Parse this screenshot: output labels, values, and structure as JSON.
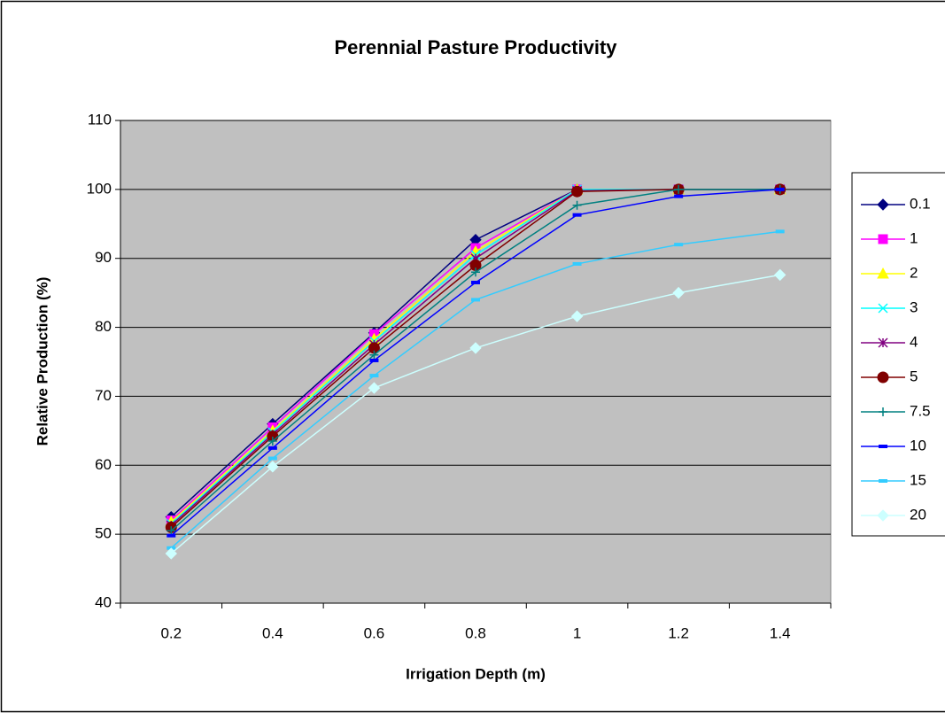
{
  "chart_data": {
    "type": "line",
    "title": "Perennial Pasture Productivity",
    "x_label": "Irrigation Depth (m)",
    "y_label": "Relative Production (%)",
    "categories": [
      "0.2",
      "0.4",
      "0.6",
      "0.8",
      "1",
      "1.2",
      "1.4"
    ],
    "ylim": [
      40,
      110
    ],
    "yticks": [
      40,
      50,
      60,
      70,
      80,
      90,
      100,
      110
    ],
    "grid": true,
    "legend": "right",
    "plot_background": "#c0c0c0",
    "series": [
      {
        "name": "0.1",
        "color": "#000080",
        "marker": "diamond",
        "values": [
          52.5,
          66,
          79.2,
          92.7,
          100,
          100,
          100
        ]
      },
      {
        "name": "1",
        "color": "#ff00ff",
        "marker": "square",
        "values": [
          52,
          65.5,
          79,
          91.5,
          100,
          100,
          100
        ]
      },
      {
        "name": "2",
        "color": "#ffff00",
        "marker": "triangle",
        "values": [
          51.8,
          65,
          78.3,
          91,
          100,
          100,
          100
        ]
      },
      {
        "name": "3",
        "color": "#00ffff",
        "marker": "x",
        "values": [
          51.5,
          64.8,
          78,
          90.5,
          100,
          100,
          100
        ]
      },
      {
        "name": "4",
        "color": "#800080",
        "marker": "star",
        "values": [
          51.3,
          64.5,
          77.5,
          90,
          99.8,
          100,
          100
        ]
      },
      {
        "name": "5",
        "color": "#800000",
        "marker": "circle",
        "values": [
          51,
          64.2,
          77,
          89,
          99.7,
          100,
          100
        ]
      },
      {
        "name": "7.5",
        "color": "#008080",
        "marker": "plus",
        "values": [
          50.5,
          63.5,
          76,
          88,
          97.7,
          100,
          100
        ]
      },
      {
        "name": "10",
        "color": "#0000ff",
        "marker": "dash",
        "values": [
          49.8,
          62.5,
          75.2,
          86.5,
          96.3,
          99,
          100
        ]
      },
      {
        "name": "15",
        "color": "#33ccff",
        "marker": "dash",
        "values": [
          48,
          61,
          73,
          84,
          89.2,
          92,
          93.9
        ]
      },
      {
        "name": "20",
        "color": "#ccffff",
        "marker": "diamond",
        "values": [
          47.2,
          59.8,
          71.2,
          77,
          81.6,
          85,
          87.6
        ]
      }
    ]
  }
}
